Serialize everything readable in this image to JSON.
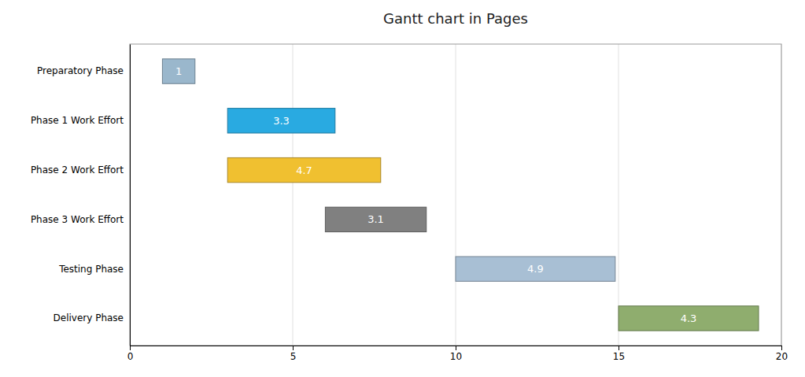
{
  "chart_data": {
    "type": "gantt",
    "title": "Gantt chart in Pages",
    "orientation": "horizontal",
    "categories": [
      "Preparatory Phase",
      "Phase 1 Work Effort",
      "Phase 2 Work Effort",
      "Phase 3 Work Effort",
      "Testing Phase",
      "Delivery Phase"
    ],
    "starts": [
      1,
      3,
      3,
      6,
      10,
      15
    ],
    "values": [
      1,
      3.3,
      4.7,
      3.1,
      4.9,
      4.3
    ],
    "colors": [
      "#9ab7cc",
      "#29aae1",
      "#f0c030",
      "#808080",
      "#a8bfd4",
      "#8fad6e"
    ],
    "xlim": [
      0,
      20
    ],
    "xticks": [
      0,
      5,
      10,
      15,
      20
    ],
    "grid": true,
    "data_labels": true
  }
}
